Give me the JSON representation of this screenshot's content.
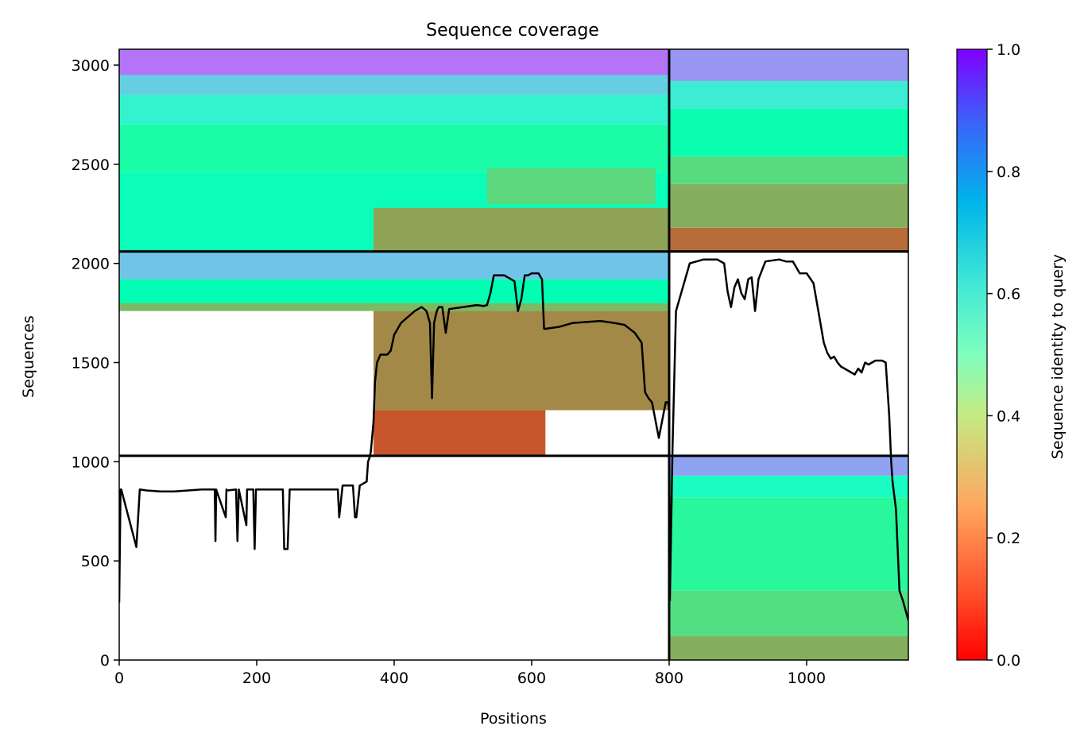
{
  "chart_data": {
    "type": "heatmap",
    "title": "Sequence coverage",
    "xlabel": "Positions",
    "ylabel": "Sequences",
    "xlim": [
      0,
      1148
    ],
    "ylim": [
      0,
      3080
    ],
    "x_ticks": [
      0,
      200,
      400,
      600,
      800,
      1000
    ],
    "y_ticks": [
      0,
      500,
      1000,
      1500,
      2000,
      2500,
      3000
    ],
    "grid": false,
    "colorbar": {
      "label": "Sequence identity to query",
      "colormap": "rainbow_r",
      "range": [
        0,
        1
      ],
      "ticks": [
        0.0,
        0.2,
        0.4,
        0.6,
        0.8,
        1.0
      ],
      "tick_labels": [
        "0.0",
        "0.2",
        "0.4",
        "0.6",
        "0.8",
        "1.0"
      ],
      "stops": [
        "#ff0000",
        "#ff7f41",
        "#7fffbf",
        "#00b4eb",
        "#7f00ff"
      ]
    },
    "block_boundaries": {
      "positions": [
        800
      ],
      "sequences": [
        1030,
        2060
      ]
    },
    "blocks": [
      {
        "x": [
          0,
          800
        ],
        "y": [
          2060,
          2460
        ],
        "identity": 0.52
      },
      {
        "x": [
          0,
          800
        ],
        "y": [
          2460,
          2700
        ],
        "identity": 0.45
      },
      {
        "x": [
          0,
          800
        ],
        "y": [
          2700,
          2850
        ],
        "identity": 0.6
      },
      {
        "x": [
          0,
          800
        ],
        "y": [
          2850,
          2950
        ],
        "identity": 0.7
      },
      {
        "x": [
          0,
          800
        ],
        "y": [
          2950,
          3080
        ],
        "identity": 0.85
      },
      {
        "x": [
          370,
          800
        ],
        "y": [
          2060,
          2280
        ],
        "identity": 0.22
      },
      {
        "x": [
          535,
          780
        ],
        "y": [
          2300,
          2480
        ],
        "identity": 0.32
      },
      {
        "x": [
          800,
          1148
        ],
        "y": [
          2060,
          2180
        ],
        "identity": 0.14
      },
      {
        "x": [
          800,
          1148
        ],
        "y": [
          2180,
          2400
        ],
        "identity": 0.24
      },
      {
        "x": [
          800,
          1148
        ],
        "y": [
          2400,
          2540
        ],
        "identity": 0.33
      },
      {
        "x": [
          800,
          1148
        ],
        "y": [
          2540,
          2780
        ],
        "identity": 0.48
      },
      {
        "x": [
          800,
          1148
        ],
        "y": [
          2780,
          2920
        ],
        "identity": 0.62
      },
      {
        "x": [
          800,
          1148
        ],
        "y": [
          2920,
          3080
        ],
        "identity": 0.8
      },
      {
        "x": [
          0,
          800
        ],
        "y": [
          1760,
          1800
        ],
        "identity": 0.26
      },
      {
        "x": [
          0,
          800
        ],
        "y": [
          1800,
          1920
        ],
        "identity": 0.5
      },
      {
        "x": [
          0,
          800
        ],
        "y": [
          1920,
          2060
        ],
        "identity": 0.72
      },
      {
        "x": [
          370,
          800
        ],
        "y": [
          1260,
          1760
        ],
        "identity": 0.18
      },
      {
        "x": [
          370,
          620
        ],
        "y": [
          1030,
          1260
        ],
        "identity": 0.11
      },
      {
        "x": [
          800,
          1148
        ],
        "y": [
          0,
          120
        ],
        "identity": 0.24
      },
      {
        "x": [
          800,
          1148
        ],
        "y": [
          120,
          350
        ],
        "identity": 0.34
      },
      {
        "x": [
          800,
          1148
        ],
        "y": [
          350,
          820
        ],
        "identity": 0.42
      },
      {
        "x": [
          800,
          1148
        ],
        "y": [
          820,
          930
        ],
        "identity": 0.55
      },
      {
        "x": [
          800,
          1148
        ],
        "y": [
          930,
          1030
        ],
        "identity": 0.78
      }
    ],
    "coverage_line": {
      "x": [
        0,
        2,
        3,
        25,
        30,
        40,
        60,
        80,
        100,
        120,
        139,
        140,
        141,
        155,
        156,
        157,
        170,
        172,
        174,
        185,
        186,
        195,
        197,
        199,
        210,
        238,
        240,
        245,
        248,
        252,
        280,
        300,
        318,
        320,
        325,
        340,
        343,
        345,
        350,
        360,
        362,
        364,
        366,
        370,
        372,
        375,
        380,
        390,
        395,
        400,
        410,
        430,
        440,
        447,
        452,
        455,
        458,
        462,
        465,
        470,
        475,
        480,
        500,
        520,
        530,
        535,
        540,
        545,
        560,
        575,
        580,
        585,
        590,
        595,
        600,
        610,
        615,
        618,
        620,
        640,
        660,
        700,
        720,
        735,
        750,
        760,
        765,
        770,
        775,
        785,
        795,
        798,
        800,
        801,
        805,
        810,
        830,
        850,
        870,
        880,
        885,
        890,
        895,
        900,
        905,
        910,
        915,
        920,
        925,
        930,
        940,
        960,
        970,
        980,
        990,
        1000,
        1010,
        1015,
        1020,
        1025,
        1030,
        1035,
        1040,
        1045,
        1050,
        1060,
        1070,
        1075,
        1080,
        1085,
        1090,
        1100,
        1110,
        1115,
        1120,
        1123,
        1125,
        1130,
        1135,
        1140,
        1148
      ],
      "y": [
        290,
        860,
        860,
        570,
        860,
        855,
        850,
        850,
        855,
        860,
        860,
        600,
        860,
        720,
        860,
        855,
        860,
        600,
        860,
        680,
        860,
        860,
        560,
        860,
        860,
        860,
        560,
        560,
        860,
        860,
        860,
        860,
        860,
        720,
        880,
        880,
        720,
        720,
        880,
        900,
        1000,
        1020,
        1050,
        1200,
        1400,
        1500,
        1540,
        1540,
        1560,
        1640,
        1700,
        1760,
        1780,
        1760,
        1700,
        1320,
        1700,
        1760,
        1780,
        1780,
        1650,
        1770,
        1780,
        1790,
        1785,
        1790,
        1850,
        1940,
        1940,
        1910,
        1760,
        1820,
        1940,
        1940,
        1950,
        1950,
        1920,
        1670,
        1670,
        1680,
        1700,
        1710,
        1700,
        1690,
        1650,
        1600,
        1350,
        1320,
        1300,
        1120,
        1300,
        1300,
        1270,
        300,
        1080,
        1760,
        2000,
        2020,
        2020,
        2000,
        1860,
        1780,
        1880,
        1920,
        1850,
        1820,
        1920,
        1930,
        1760,
        1920,
        2010,
        2020,
        2010,
        2010,
        1950,
        1950,
        1900,
        1800,
        1700,
        1600,
        1550,
        1520,
        1530,
        1500,
        1480,
        1460,
        1440,
        1470,
        1450,
        1500,
        1490,
        1510,
        1510,
        1500,
        1240,
        1000,
        900,
        760,
        350,
        300,
        200
      ]
    }
  }
}
